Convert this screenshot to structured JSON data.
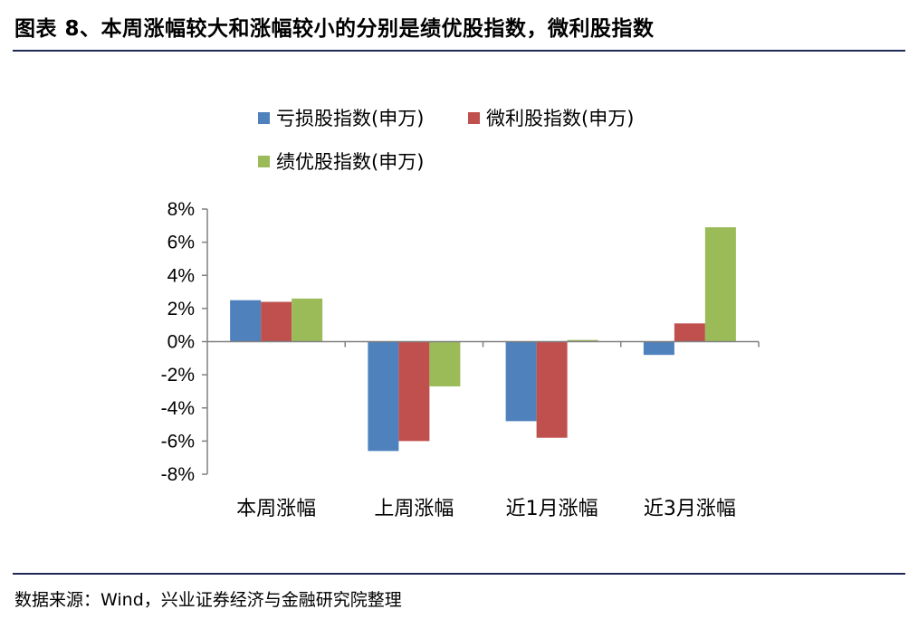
{
  "title": "图表 8、本周涨幅较大和涨幅较小的分别是绩优股指数，微利股指数",
  "source": "数据来源：Wind，兴业证券经济与金融研究院整理",
  "chart_data": {
    "type": "bar",
    "categories": [
      "本周涨幅",
      "上周涨幅",
      "近1月涨幅",
      "近3月涨幅"
    ],
    "series": [
      {
        "name": "亏损股指数(申万)",
        "color": "#4f81bd",
        "values": [
          2.5,
          -6.6,
          -4.8,
          -0.8
        ]
      },
      {
        "name": "微利股指数(申万)",
        "color": "#c0504d",
        "values": [
          2.4,
          -6.0,
          -5.8,
          1.1
        ]
      },
      {
        "name": "绩优股指数(申万)",
        "color": "#9bbb59",
        "values": [
          2.6,
          -2.7,
          0.1,
          6.9
        ]
      }
    ],
    "ylim": [
      -8,
      8
    ],
    "yticks": [
      "8%",
      "6%",
      "4%",
      "2%",
      "0%",
      "-2%",
      "-4%",
      "-6%",
      "-8%"
    ],
    "ytick_values": [
      8,
      6,
      4,
      2,
      0,
      -2,
      -4,
      -6,
      -8
    ],
    "grid": false,
    "legend": "top"
  }
}
